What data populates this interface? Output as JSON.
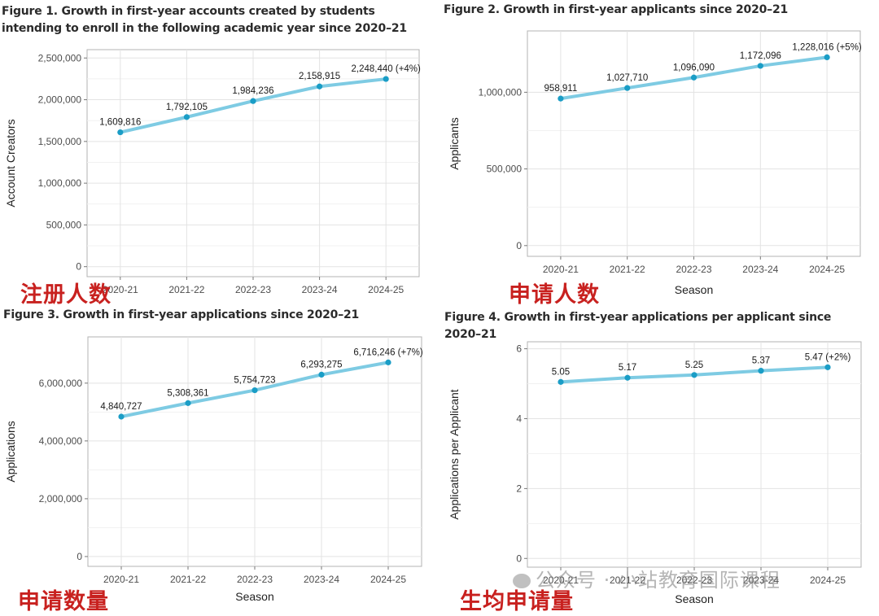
{
  "chart_data": [
    {
      "type": "line",
      "title": "Figure 1. Growth in first-year accounts created by students intending to enroll in the following academic year since 2020–21",
      "xlabel": "",
      "ylabel": "Account Creators",
      "categories": [
        "2020-21",
        "2021-22",
        "2022-23",
        "2023-24",
        "2024-25"
      ],
      "values": [
        1609816,
        1792105,
        1984236,
        2158915,
        2248440
      ],
      "data_labels": [
        "1,609,816",
        "1,792,105",
        "1,984,236",
        "2,158,915",
        "2,248,440 (+4%)"
      ],
      "yticks": [
        0,
        500000,
        1000000,
        1500000,
        2000000,
        2500000
      ],
      "ytick_labels": [
        "0",
        "500,000",
        "1,000,000",
        "1,500,000",
        "2,000,000",
        "2,500,000"
      ],
      "ylim": [
        -120000,
        2600000
      ],
      "grid": true,
      "line_color": "#7ecbe3",
      "point_color": "#1a9dc6",
      "annotation": "注册人数"
    },
    {
      "type": "line",
      "title": "Figure 2. Growth in first-year applicants since 2020–21",
      "xlabel": "Season",
      "ylabel": "Applicants",
      "categories": [
        "2020-21",
        "2021-22",
        "2022-23",
        "2023-24",
        "2024-25"
      ],
      "values": [
        958911,
        1027710,
        1096090,
        1172096,
        1228016
      ],
      "data_labels": [
        "958,911",
        "1,027,710",
        "1,096,090",
        "1,172,096",
        "1,228,016 (+5%)"
      ],
      "yticks": [
        0,
        500000,
        1000000
      ],
      "ytick_labels": [
        "0",
        "500,000",
        "1,000,000"
      ],
      "ylim": [
        -70000,
        1400000
      ],
      "grid": true,
      "line_color": "#7ecbe3",
      "point_color": "#1a9dc6",
      "annotation": "申请人数"
    },
    {
      "type": "line",
      "title": "Figure 3. Growth in first-year applications since 2020–21",
      "xlabel": "Season",
      "ylabel": "Applications",
      "categories": [
        "2020-21",
        "2021-22",
        "2022-23",
        "2023-24",
        "2024-25"
      ],
      "values": [
        4840727,
        5308361,
        5754723,
        6293275,
        6716246
      ],
      "data_labels": [
        "4,840,727",
        "5,308,361",
        "5,754,723",
        "6,293,275",
        "6,716,246 (+7%)"
      ],
      "yticks": [
        0,
        2000000,
        4000000,
        6000000
      ],
      "ytick_labels": [
        "0",
        "2,000,000",
        "4,000,000",
        "6,000,000"
      ],
      "ylim": [
        -340000,
        7600000
      ],
      "grid": true,
      "line_color": "#7ecbe3",
      "point_color": "#1a9dc6",
      "annotation": "申请数量"
    },
    {
      "type": "line",
      "title": "Figure 4. Growth in first-year applications per applicant since 2020–21",
      "xlabel": "Season",
      "ylabel": "Applications per Applicant",
      "categories": [
        "2020-21",
        "2021-22",
        "2022-23",
        "2023-24",
        "2024-25"
      ],
      "values": [
        5.05,
        5.17,
        5.25,
        5.37,
        5.47
      ],
      "data_labels": [
        "5.05",
        "5.17",
        "5.25",
        "5.37",
        "5.47 (+2%)"
      ],
      "yticks": [
        0,
        2,
        4,
        6
      ],
      "ytick_labels": [
        "0",
        "2",
        "4",
        "6"
      ],
      "ylim": [
        -0.25,
        6.2
      ],
      "grid": true,
      "line_color": "#7ecbe3",
      "point_color": "#1a9dc6",
      "annotation": "生均申请量"
    }
  ],
  "watermark": "公众号 · 小站教育国际课程"
}
